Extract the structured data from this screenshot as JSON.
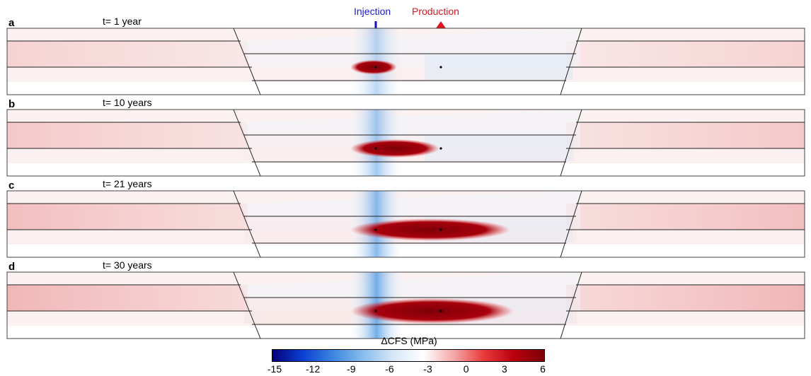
{
  "injection_label": "Injection",
  "production_label": "Production",
  "colorbar": {
    "title": "ΔCFS (MPa)",
    "min": -15,
    "max": 6,
    "ticks": [
      "-15",
      "-12",
      "-9",
      "-6",
      "-3",
      "0",
      "3",
      "6"
    ],
    "colors": [
      "#05007a",
      "#0b3fd2",
      "#3b86e0",
      "#86bdec",
      "#d7e7f6",
      "#ffffff",
      "#f5a8a8",
      "#ea3a3a",
      "#b8000c",
      "#7d0008"
    ]
  },
  "panels": [
    {
      "letter": "a",
      "time": "t= 1 year"
    },
    {
      "letter": "b",
      "time": "t= 10 years"
    },
    {
      "letter": "c",
      "time": "t= 21 years"
    },
    {
      "letter": "d",
      "time": "t= 30 years"
    }
  ]
}
